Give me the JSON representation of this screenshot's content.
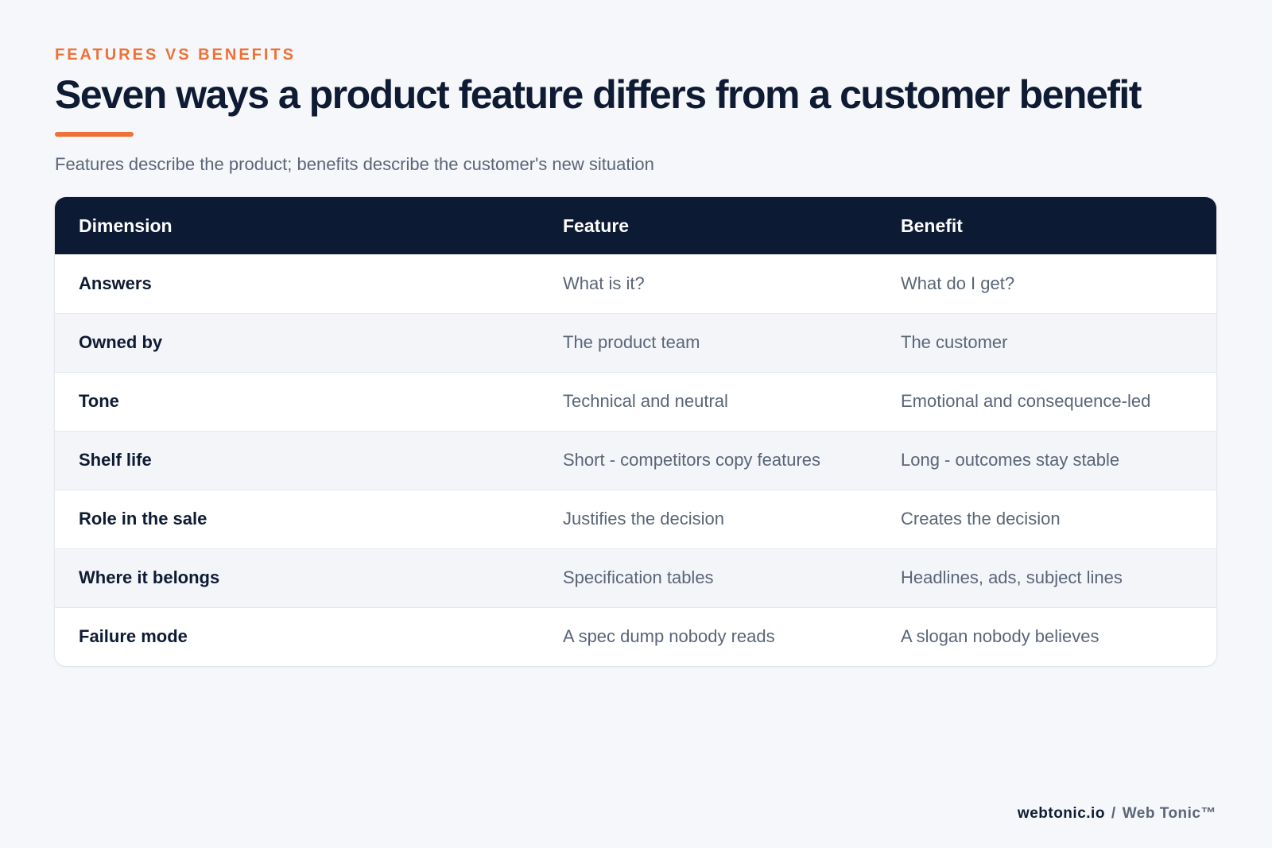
{
  "header": {
    "eyebrow": "FEATURES VS BENEFITS",
    "title": "Seven ways a product feature differs from a customer benefit",
    "subtitle": "Features describe the product; benefits describe the customer's new situation",
    "accent_color": "#ee7135"
  },
  "table": {
    "columns": [
      "Dimension",
      "Feature",
      "Benefit"
    ],
    "header_color": "#0d1a33",
    "rows": [
      {
        "dimension": "Answers",
        "feature": "What is it?",
        "benefit": "What do I get?"
      },
      {
        "dimension": "Owned by",
        "feature": "The product team",
        "benefit": "The customer"
      },
      {
        "dimension": "Tone",
        "feature": "Technical and neutral",
        "benefit": "Emotional and consequence-led"
      },
      {
        "dimension": "Shelf life",
        "feature": "Short - competitors copy features",
        "benefit": "Long - outcomes stay stable"
      },
      {
        "dimension": "Role in the sale",
        "feature": "Justifies the decision",
        "benefit": "Creates the decision"
      },
      {
        "dimension": "Where it belongs",
        "feature": "Specification tables",
        "benefit": "Headlines, ads, subject lines"
      },
      {
        "dimension": "Failure mode",
        "feature": "A spec dump nobody reads",
        "benefit": "A slogan nobody believes"
      }
    ]
  },
  "footer": {
    "site": "webtonic.io",
    "separator": "/",
    "brand": "Web Tonic™"
  }
}
